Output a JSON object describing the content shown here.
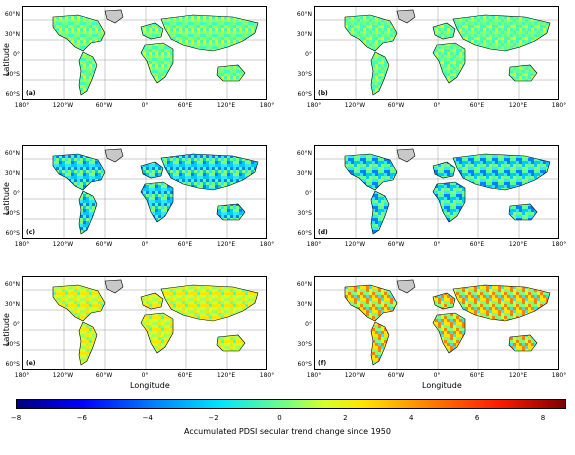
{
  "axes": {
    "y_title": "Latitude",
    "x_title": "Longitude",
    "lat_ticks": [
      "60°N",
      "30°N",
      "0°",
      "30°S",
      "60°S"
    ],
    "lon_ticks": [
      "180°",
      "120°W",
      "60°W",
      "0°",
      "60°E",
      "120°E",
      "180°"
    ]
  },
  "panels": [
    {
      "id": "a",
      "label": "(a)",
      "palette": [
        "#7dff7a",
        "#a6ff51",
        "#5aff9b",
        "#d4ff2a",
        "#3dffb9"
      ]
    },
    {
      "id": "b",
      "label": "(b)",
      "palette": [
        "#7dff7a",
        "#a6ff51",
        "#5aff9b",
        "#d4ff2a",
        "#3dffb9"
      ]
    },
    {
      "id": "c",
      "label": "(c)",
      "palette": [
        "#7dff7a",
        "#5aff9b",
        "#2ee8ff",
        "#00c8ff",
        "#0080ff"
      ]
    },
    {
      "id": "d",
      "label": "(d)",
      "palette": [
        "#5aff9b",
        "#2ee8ff",
        "#00c8ff",
        "#0080ff",
        "#7dff7a"
      ]
    },
    {
      "id": "e",
      "label": "(e)",
      "palette": [
        "#7dff7a",
        "#a6ff51",
        "#5aff9b",
        "#d4ff2a",
        "#ffe600"
      ]
    },
    {
      "id": "f",
      "label": "(f)",
      "palette": [
        "#2ee8ff",
        "#ffe600",
        "#ff8000",
        "#7dff7a",
        "#d4ff2a"
      ]
    }
  ],
  "colorbar": {
    "ticks": [
      "−8",
      "−6",
      "−4",
      "−2",
      "0",
      "2",
      "4",
      "6",
      "8"
    ],
    "title": "Accumulated PDSI secular trend change since 1950",
    "min": -8,
    "max": 8.7
  },
  "colors": {
    "greenland": "#c8c8c8",
    "grid": "#9a9a9a"
  }
}
